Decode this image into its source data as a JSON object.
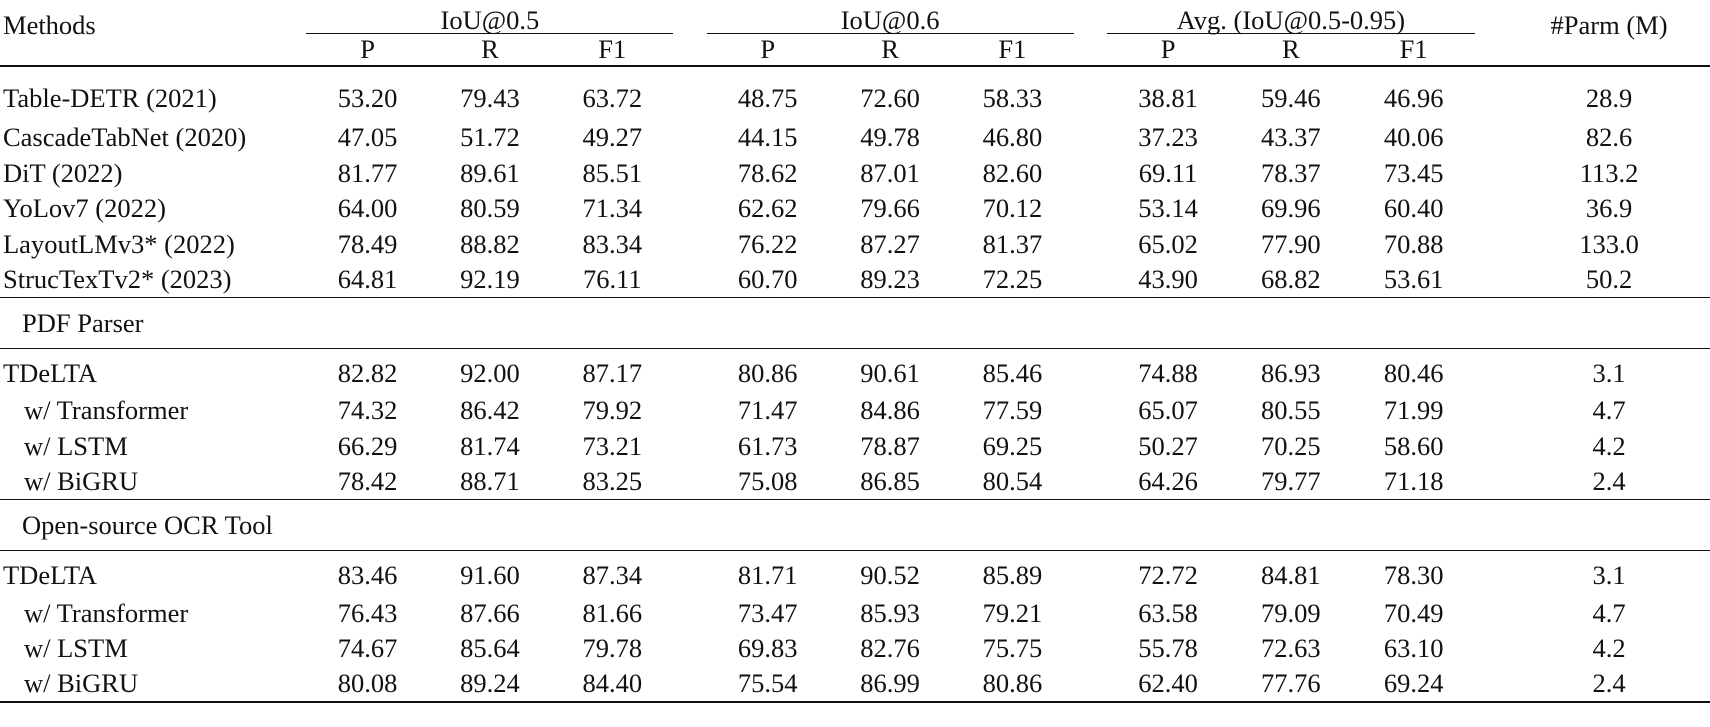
{
  "header": {
    "methods": "Methods",
    "groups": [
      "IoU@0.5",
      "IoU@0.6",
      "Avg. (IoU@0.5-0.95)"
    ],
    "sub": [
      "P",
      "R",
      "F1"
    ],
    "parm": "#Parm (M)"
  },
  "baselines": [
    {
      "method": "Table-DETR (2021)",
      "v": [
        "53.20",
        "79.43",
        "63.72",
        "48.75",
        "72.60",
        "58.33",
        "38.81",
        "59.46",
        "46.96"
      ],
      "parm": "28.9"
    },
    {
      "method": "CascadeTabNet (2020)",
      "v": [
        "47.05",
        "51.72",
        "49.27",
        "44.15",
        "49.78",
        "46.80",
        "37.23",
        "43.37",
        "40.06"
      ],
      "parm": "82.6"
    },
    {
      "method": "DiT (2022)",
      "v": [
        "81.77",
        "89.61",
        "85.51",
        "78.62",
        "87.01",
        "82.60",
        "69.11",
        "78.37",
        "73.45"
      ],
      "parm": "113.2"
    },
    {
      "method": "YoLov7 (2022)",
      "v": [
        "64.00",
        "80.59",
        "71.34",
        "62.62",
        "79.66",
        "70.12",
        "53.14",
        "69.96",
        "60.40"
      ],
      "parm": "36.9"
    },
    {
      "method": "LayoutLMv3* (2022)",
      "v": [
        "78.49",
        "88.82",
        "83.34",
        "76.22",
        "87.27",
        "81.37",
        "65.02",
        "77.90",
        "70.88"
      ],
      "parm": "133.0"
    },
    {
      "method": "StrucTexTv2* (2023)",
      "v": [
        "64.81",
        "92.19",
        "76.11",
        "60.70",
        "89.23",
        "72.25",
        "43.90",
        "68.82",
        "53.61"
      ],
      "parm": "50.2"
    }
  ],
  "sections": [
    {
      "title": "PDF Parser",
      "rows": [
        {
          "method": "TDeLTA",
          "bold": true,
          "v": [
            "82.82",
            "92.00",
            "87.17",
            "80.86",
            "90.61",
            "85.46",
            "74.88",
            "86.93",
            "80.46"
          ],
          "parm": "3.1"
        },
        {
          "method": "w/ Transformer",
          "v": [
            "74.32",
            "86.42",
            "79.92",
            "71.47",
            "84.86",
            "77.59",
            "65.07",
            "80.55",
            "71.99"
          ],
          "parm": "4.7"
        },
        {
          "method": "w/ LSTM",
          "v": [
            "66.29",
            "81.74",
            "73.21",
            "61.73",
            "78.87",
            "69.25",
            "50.27",
            "70.25",
            "58.60"
          ],
          "parm": "4.2"
        },
        {
          "method": "w/ BiGRU",
          "v": [
            "78.42",
            "88.71",
            "83.25",
            "75.08",
            "86.85",
            "80.54",
            "64.26",
            "79.77",
            "71.18"
          ],
          "parm": "2.4"
        }
      ]
    },
    {
      "title": "Open-source OCR Tool",
      "rows": [
        {
          "method": "TDeLTA",
          "bold": true,
          "v": [
            "83.46",
            "91.60",
            "87.34",
            "81.71",
            "90.52",
            "85.89",
            "72.72",
            "84.81",
            "78.30"
          ],
          "parm": "3.1"
        },
        {
          "method": "w/ Transformer",
          "v": [
            "76.43",
            "87.66",
            "81.66",
            "73.47",
            "85.93",
            "79.21",
            "63.58",
            "79.09",
            "70.49"
          ],
          "parm": "4.7"
        },
        {
          "method": "w/ LSTM",
          "v": [
            "74.67",
            "85.64",
            "79.78",
            "69.83",
            "82.76",
            "75.75",
            "55.78",
            "72.63",
            "63.10"
          ],
          "parm": "4.2"
        },
        {
          "method": "w/ BiGRU",
          "v": [
            "80.08",
            "89.24",
            "84.40",
            "75.54",
            "86.99",
            "80.86",
            "62.40",
            "77.76",
            "69.24"
          ],
          "parm": "2.4"
        }
      ]
    }
  ]
}
